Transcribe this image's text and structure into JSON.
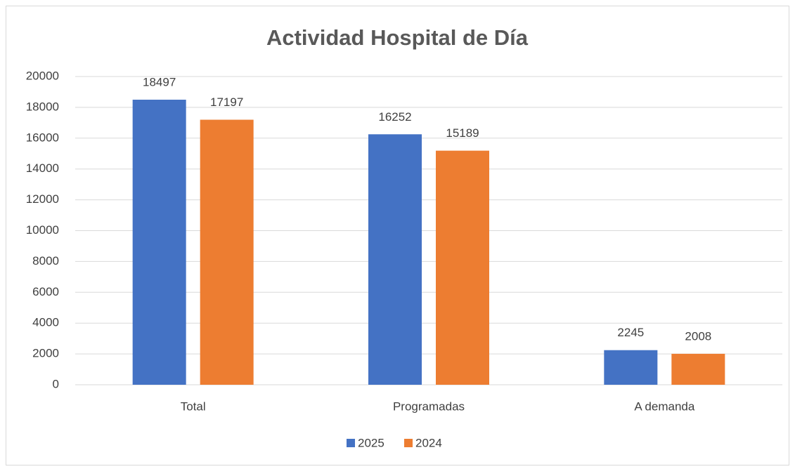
{
  "chart_data": {
    "type": "bar",
    "title": "Actividad Hospital de Día",
    "categories": [
      "Total",
      "Programadas",
      "A demanda"
    ],
    "series": [
      {
        "name": "2025",
        "color": "#4472c4",
        "values": [
          18497,
          16252,
          2245
        ]
      },
      {
        "name": "2024",
        "color": "#ed7d31",
        "values": [
          17197,
          15189,
          2008
        ]
      }
    ],
    "ylim": [
      0,
      20000
    ],
    "yticks": [
      0,
      2000,
      4000,
      6000,
      8000,
      10000,
      12000,
      14000,
      16000,
      18000,
      20000
    ],
    "grid": true,
    "legend": "bottom"
  }
}
